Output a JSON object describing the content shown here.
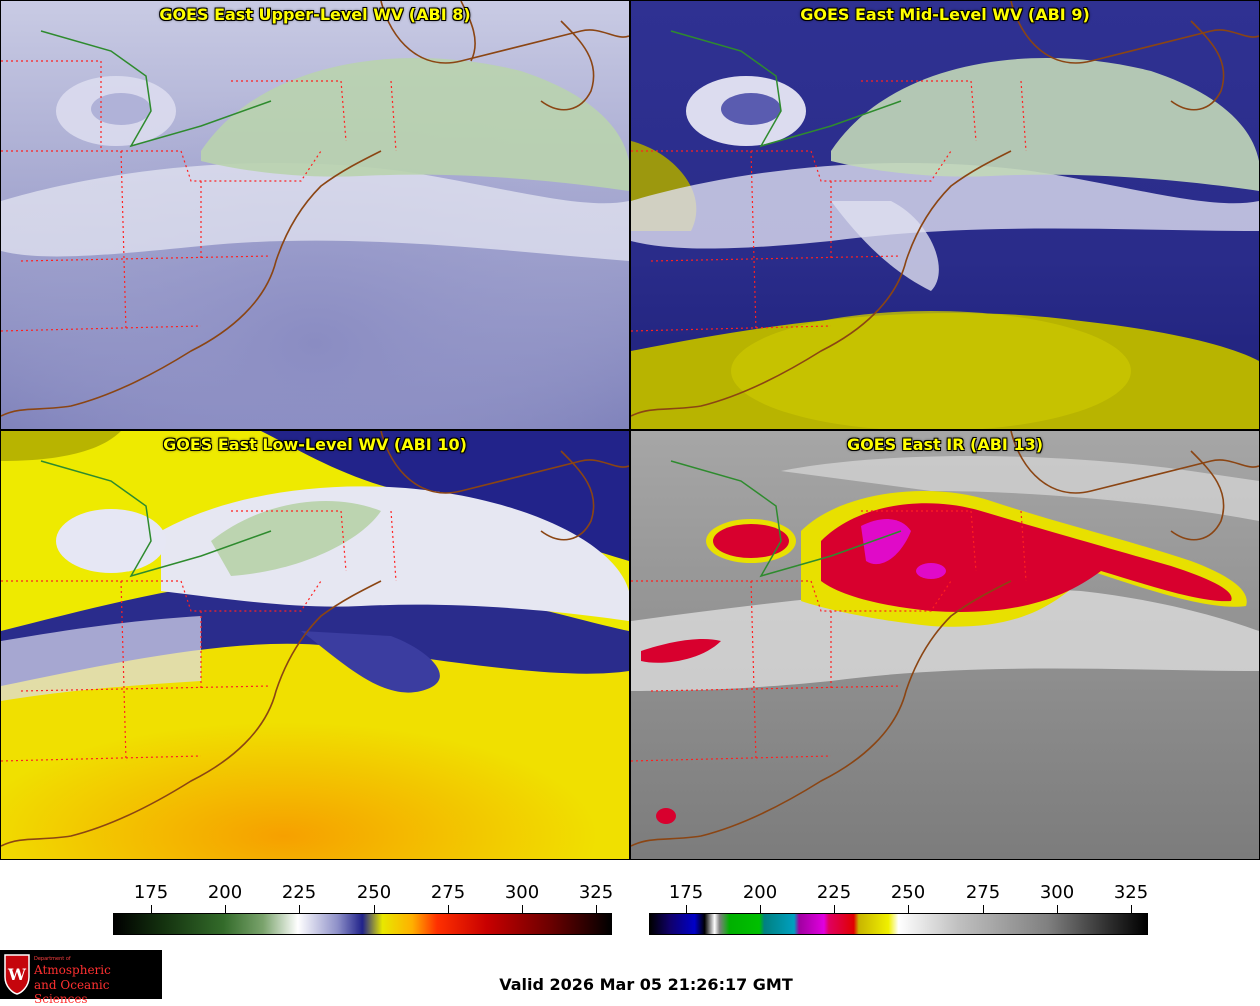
{
  "panels": [
    {
      "title": "GOES East Upper-Level WV (ABI 8)",
      "palette": "wv"
    },
    {
      "title": "GOES East Mid-Level WV (ABI 9)",
      "palette": "wv"
    },
    {
      "title": "GOES East Low-Level WV (ABI 10)",
      "palette": "wv"
    },
    {
      "title": "GOES East IR (ABI 13)",
      "palette": "ir"
    }
  ],
  "colorbars": {
    "wv": {
      "ticks": [
        "175",
        "200",
        "225",
        "250",
        "275",
        "300",
        "325"
      ]
    },
    "ir": {
      "ticks": [
        "175",
        "200",
        "225",
        "250",
        "275",
        "300",
        "325"
      ]
    }
  },
  "logo": {
    "dept_line": "Department of",
    "line1": "Atmospheric",
    "line2": "and Oceanic Sciences",
    "shield_letter": "W"
  },
  "valid_time": "Valid 2026 Mar 05 21:26:17 GMT",
  "colors": {
    "title_text": "#ffff00",
    "state_borders": "#ff2020",
    "coastlines": "#8b4513",
    "province_line": "#2e8b2e"
  }
}
